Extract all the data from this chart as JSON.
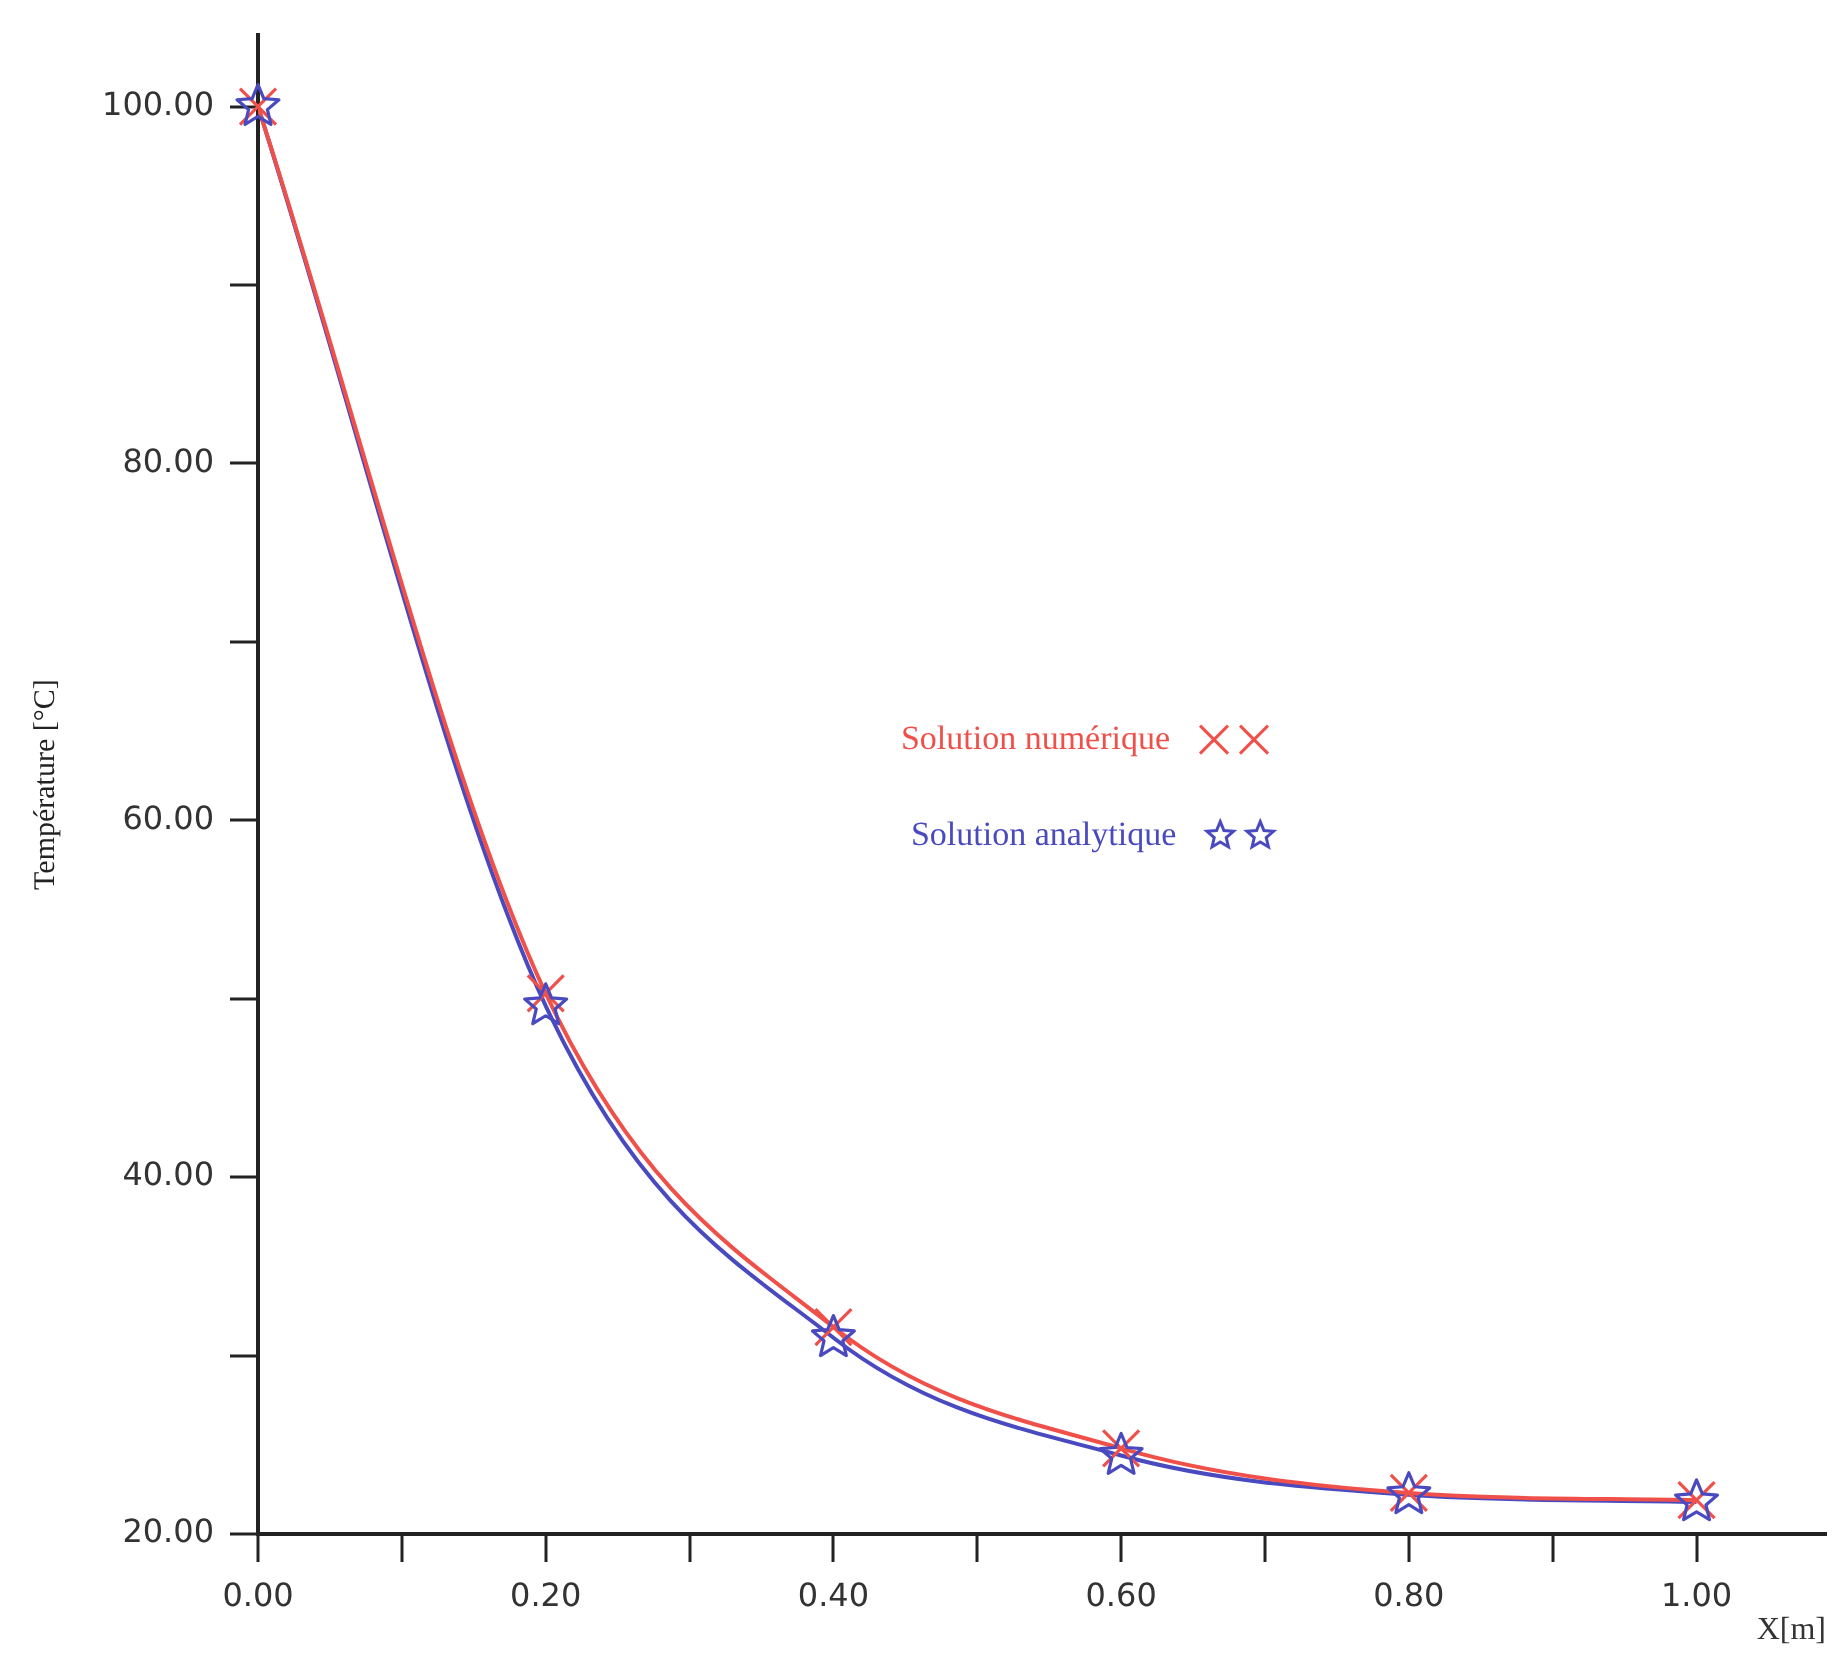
{
  "chart_data": {
    "type": "line",
    "xlabel": "X[m]",
    "ylabel": "Température [°C]",
    "x": [
      0,
      0.2,
      0.4,
      0.6,
      0.8,
      1.0
    ],
    "series": [
      {
        "name": "Solution numérique",
        "color": "#f0504a",
        "marker": "cross",
        "values": [
          100,
          50.3,
          31.6,
          24.8,
          22.3,
          21.9
        ]
      },
      {
        "name": "Solution analytique",
        "color": "#4a4ac0",
        "marker": "star",
        "values": [
          100,
          49.6,
          31.0,
          24.4,
          22.2,
          21.8
        ]
      }
    ],
    "xlim": [
      0,
      1.09
    ],
    "ylim": [
      20,
      104
    ],
    "xticks": [
      {
        "value": 0,
        "label": "0.00"
      },
      {
        "value": 0.1,
        "label": null
      },
      {
        "value": 0.2,
        "label": "0.20"
      },
      {
        "value": 0.3,
        "label": null
      },
      {
        "value": 0.4,
        "label": "0.40"
      },
      {
        "value": 0.5,
        "label": null
      },
      {
        "value": 0.6,
        "label": "0.60"
      },
      {
        "value": 0.7,
        "label": null
      },
      {
        "value": 0.8,
        "label": "0.80"
      },
      {
        "value": 0.9,
        "label": null
      },
      {
        "value": 1.0,
        "label": "1.00"
      }
    ],
    "yticks": [
      {
        "value": 20,
        "label": "20.00"
      },
      {
        "value": 30,
        "label": null
      },
      {
        "value": 40,
        "label": "40.00"
      },
      {
        "value": 50,
        "label": null
      },
      {
        "value": 60,
        "label": "60.00"
      },
      {
        "value": 70,
        "label": null
      },
      {
        "value": 80,
        "label": "80.00"
      },
      {
        "value": 90,
        "label": null
      },
      {
        "value": 100,
        "label": "100.00"
      }
    ],
    "grid": false,
    "legend": "center"
  }
}
